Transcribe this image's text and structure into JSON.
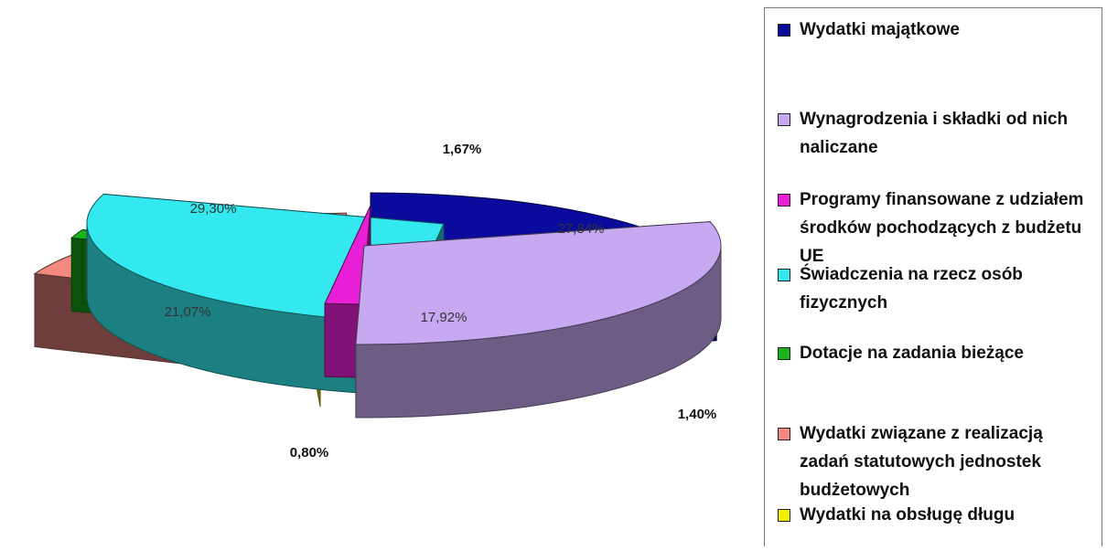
{
  "chart_data": {
    "type": "pie",
    "style": "3d-exploded",
    "legend_position": "right",
    "slices": [
      {
        "label": "Wydatki majątkowe",
        "value": 21.07,
        "value_label": "21,07%",
        "color": "#0a0a9c"
      },
      {
        "label": "Wynagrodzenia i składki od nich naliczane",
        "value": 29.3,
        "value_label": "29,30%",
        "color": "#c6a9f1"
      },
      {
        "label": "Programy finansowane z udziałem środków pochodzących z budżetu UE",
        "value": 1.67,
        "value_label": "1,67%",
        "color": "#e81fd6"
      },
      {
        "label": "Świadczenia na rzecz osób fizycznych",
        "value": 27.84,
        "value_label": "27,84%",
        "color": "#33e8ee"
      },
      {
        "label": "Dotacje na zadania bieżące",
        "value": 1.4,
        "value_label": "1,40%",
        "color": "#1ab41a"
      },
      {
        "label": "Wydatki związane z realizacją zadań statutowych jednostek budżetowych",
        "value": 17.92,
        "value_label": "17,92%",
        "color": "#f28a82"
      },
      {
        "label": "Wydatki na obsługę długu",
        "value": 0.8,
        "value_label": "0,80%",
        "color": "#f0f000"
      }
    ]
  }
}
